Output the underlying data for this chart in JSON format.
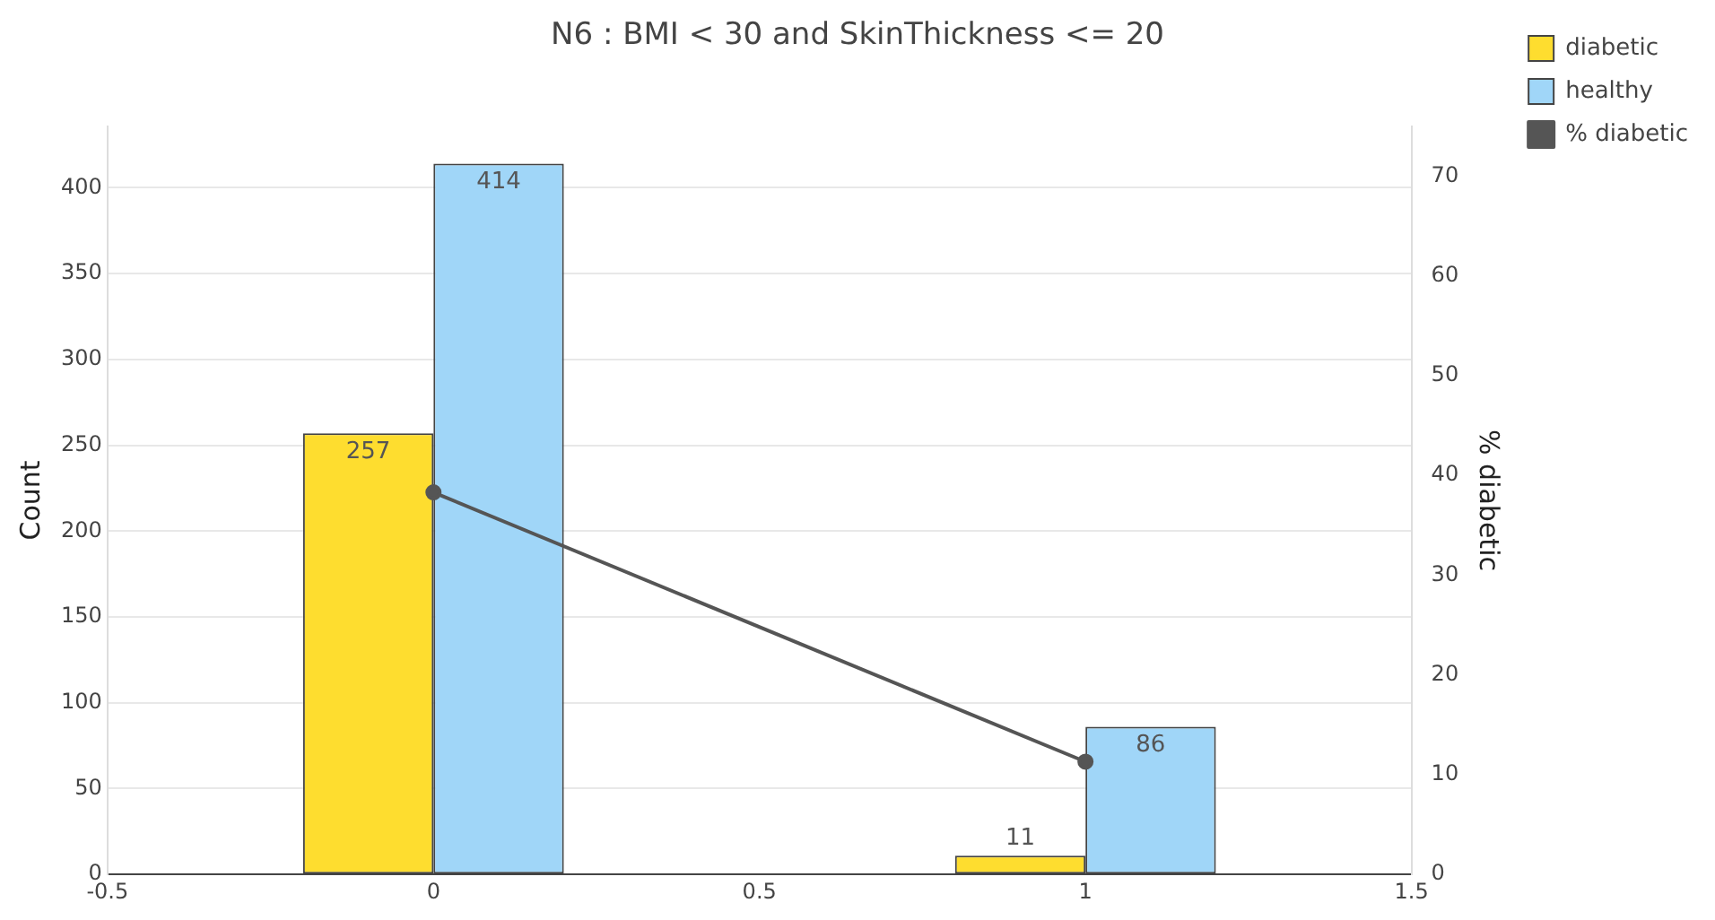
{
  "chart_data": {
    "type": "bar",
    "title": "N6 : BMI < 30 and SkinThickness <= 20",
    "ylabel": "Count",
    "y2label": "% diabetic",
    "x": [
      0,
      1
    ],
    "series": [
      {
        "name": "diabetic",
        "color": "#fedd2f",
        "values": [
          257,
          11
        ],
        "value_labels": [
          "257",
          "11"
        ]
      },
      {
        "name": "healthy",
        "color": "#a0d6f8",
        "values": [
          414,
          86
        ],
        "value_labels": [
          "414",
          "86"
        ]
      },
      {
        "name": "% diabetic",
        "type": "line",
        "axis": "y2",
        "color": "#555555",
        "values": [
          38.3,
          11.3
        ]
      }
    ],
    "xlim": [
      -0.5,
      1.5
    ],
    "xticks": [
      -0.5,
      0,
      0.5,
      1,
      1.5
    ],
    "ylim": [
      0,
      435.8
    ],
    "yticks": [
      0,
      50,
      100,
      150,
      200,
      250,
      300,
      350,
      400
    ],
    "y2lim": [
      0,
      75
    ],
    "y2ticks": [
      0,
      10,
      20,
      30,
      40,
      50,
      60,
      70
    ],
    "grid": "y",
    "legend": "top right",
    "marker": "circle"
  }
}
